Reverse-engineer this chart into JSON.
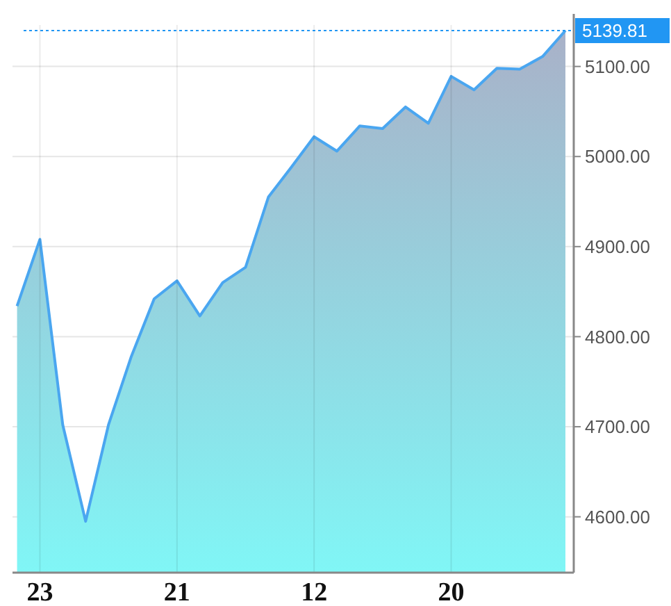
{
  "chart_data": {
    "type": "area",
    "categories": [
      null,
      "23",
      null,
      null,
      null,
      null,
      null,
      "21",
      null,
      null,
      null,
      null,
      null,
      "12",
      null,
      null,
      null,
      null,
      null,
      "20",
      null,
      null,
      null,
      null,
      null
    ],
    "series": [
      {
        "color": "#4aa6f0",
        "values": [
          4834,
          4908,
          4702,
          4595,
          4702,
          4778,
          4842,
          4862,
          4823,
          4860,
          4877,
          4955,
          4988,
          5022,
          5006,
          5034,
          5031,
          5055,
          5037,
          5089,
          5074,
          5098,
          5097,
          5111,
          5139.81
        ]
      }
    ],
    "ylim": [
      4538,
      5146
    ],
    "yticks": [
      {
        "value": 4600,
        "label": "4600.00"
      },
      {
        "value": 4700,
        "label": "4700.00"
      },
      {
        "value": 4800,
        "label": "4800.00"
      },
      {
        "value": 4900,
        "label": "4900.00"
      },
      {
        "value": 5000,
        "label": "5000.00"
      },
      {
        "value": 5100,
        "label": "5100.00"
      }
    ],
    "grid": true,
    "ref_lines": [
      {
        "axis": "y",
        "value": 5139.81,
        "label": "5139.81",
        "color": "#2196f3",
        "line_style": "dotted"
      }
    ]
  }
}
